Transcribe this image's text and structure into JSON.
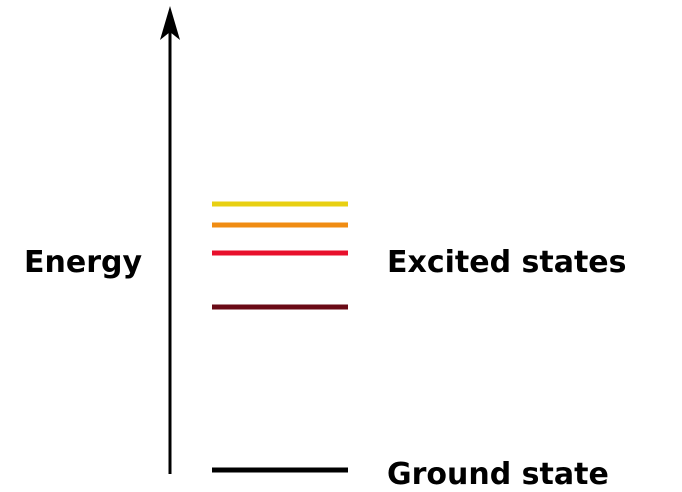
{
  "axis": {
    "label": "Energy"
  },
  "levels": {
    "excited": {
      "label": "Excited states"
    },
    "ground": {
      "label": "Ground state"
    }
  }
}
